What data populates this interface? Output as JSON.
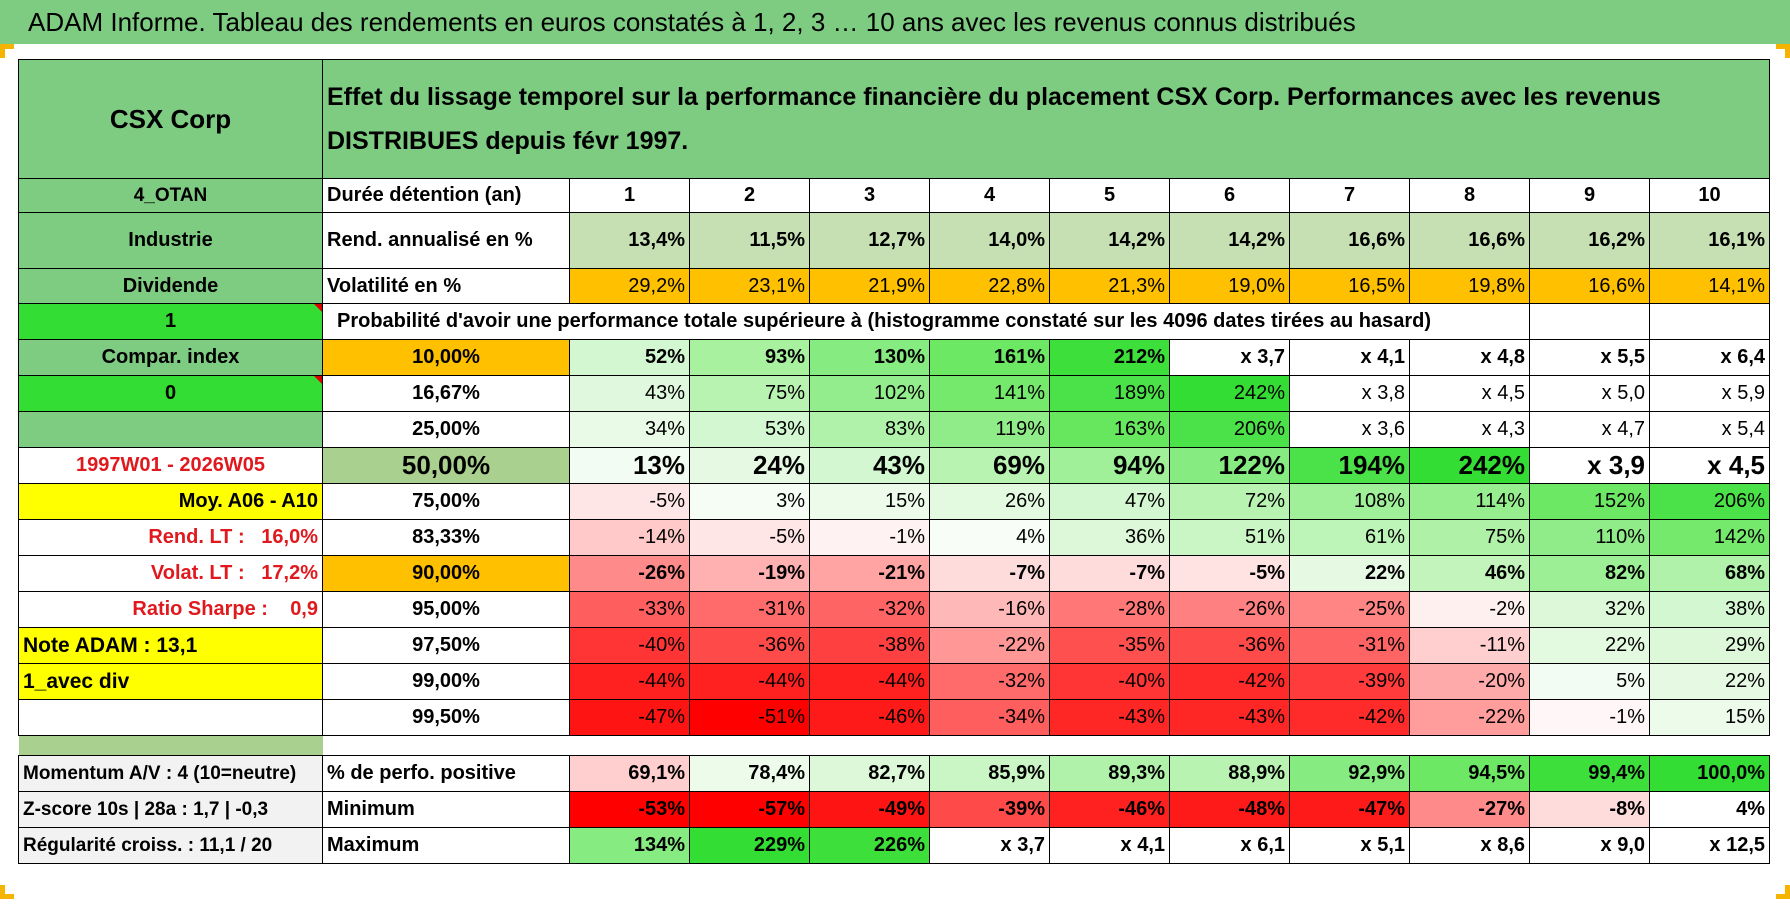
{
  "title": "ADAM Informe. Tableau des rendements en euros constatés à 1, 2, 3 … 10 ans avec les revenus connus distribués",
  "header": {
    "name": "CSX Corp",
    "description": "Effet du lissage temporel sur la performance financière du placement CSX Corp. Performances avec les revenus DISTRIBUES depuis févr 1997."
  },
  "left": {
    "code": "4_OTAN",
    "sector": "Industrie",
    "type": "Dividende",
    "flag1": "1",
    "compar": "Compar. index",
    "flag2": "0",
    "period": "1997W01 - 2026W05",
    "moy": "Moy. A06 - A10",
    "rend_lt_label": "Rend. LT :",
    "rend_lt_value": "16,0%",
    "volat_lt_label": "Volat. LT :",
    "volat_lt_value": "17,2%",
    "sharpe_label": "Ratio Sharpe :",
    "sharpe_value": "0,9",
    "note": "Note ADAM : 13,1",
    "div": "1_avec div",
    "momentum": "Momentum A/V : 4 (10=neutre)",
    "zscore": "Z-score 10s | 28a : 1,7 | -0,3",
    "regularite": "Régularité croiss. : 11,1 / 20"
  },
  "years_label": "Durée détention (an)",
  "years": [
    "1",
    "2",
    "3",
    "4",
    "5",
    "6",
    "7",
    "8",
    "9",
    "10"
  ],
  "rend_label": "Rend. annualisé en %",
  "rend": [
    "13,4%",
    "11,5%",
    "12,7%",
    "14,0%",
    "14,2%",
    "14,2%",
    "16,6%",
    "16,6%",
    "16,2%",
    "16,1%"
  ],
  "vol_label": "Volatilité en %",
  "vol": [
    "29,2%",
    "23,1%",
    "21,9%",
    "22,8%",
    "21,3%",
    "19,0%",
    "16,5%",
    "19,8%",
    "16,6%",
    "14,1%"
  ],
  "prob_label": "Probabilité d'avoir une performance totale supérieure à (histogramme constaté sur les 4096 dates tirées au hasard)",
  "prob_rows": [
    {
      "pct": "10,00%",
      "values": [
        "52%",
        "93%",
        "130%",
        "161%",
        "212%",
        "x 3,7",
        "x 4,1",
        "x 4,8",
        "x 5,5",
        "x 6,4"
      ]
    },
    {
      "pct": "16,67%",
      "values": [
        "43%",
        "75%",
        "102%",
        "141%",
        "189%",
        "242%",
        "x 3,8",
        "x 4,5",
        "x 5,0",
        "x 5,9"
      ]
    },
    {
      "pct": "25,00%",
      "values": [
        "34%",
        "53%",
        "83%",
        "119%",
        "163%",
        "206%",
        "x 3,6",
        "x 4,3",
        "x 4,7",
        "x 5,4"
      ]
    },
    {
      "pct": "50,00%",
      "values": [
        "13%",
        "24%",
        "43%",
        "69%",
        "94%",
        "122%",
        "194%",
        "242%",
        "x 3,9",
        "x 4,5"
      ]
    },
    {
      "pct": "75,00%",
      "values": [
        "-5%",
        "3%",
        "15%",
        "26%",
        "47%",
        "72%",
        "108%",
        "114%",
        "152%",
        "206%"
      ]
    },
    {
      "pct": "83,33%",
      "values": [
        "-14%",
        "-5%",
        "-1%",
        "4%",
        "36%",
        "51%",
        "61%",
        "75%",
        "110%",
        "142%"
      ]
    },
    {
      "pct": "90,00%",
      "values": [
        "-26%",
        "-19%",
        "-21%",
        "-7%",
        "-7%",
        "-5%",
        "22%",
        "46%",
        "82%",
        "68%"
      ]
    },
    {
      "pct": "95,00%",
      "values": [
        "-33%",
        "-31%",
        "-32%",
        "-16%",
        "-28%",
        "-26%",
        "-25%",
        "-2%",
        "32%",
        "38%"
      ]
    },
    {
      "pct": "97,50%",
      "values": [
        "-40%",
        "-36%",
        "-38%",
        "-22%",
        "-35%",
        "-36%",
        "-31%",
        "-11%",
        "22%",
        "29%"
      ]
    },
    {
      "pct": "99,00%",
      "values": [
        "-44%",
        "-44%",
        "-44%",
        "-32%",
        "-40%",
        "-42%",
        "-39%",
        "-20%",
        "5%",
        "22%"
      ]
    },
    {
      "pct": "99,50%",
      "values": [
        "-47%",
        "-51%",
        "-46%",
        "-34%",
        "-43%",
        "-43%",
        "-42%",
        "-22%",
        "-1%",
        "15%"
      ]
    }
  ],
  "positive_label": "% de perfo. positive",
  "positive": [
    "69,1%",
    "78,4%",
    "82,7%",
    "85,9%",
    "89,3%",
    "88,9%",
    "92,9%",
    "94,5%",
    "99,4%",
    "100,0%"
  ],
  "min_label": "Minimum",
  "min": [
    "-53%",
    "-57%",
    "-49%",
    "-39%",
    "-46%",
    "-48%",
    "-47%",
    "-27%",
    "-8%",
    "4%"
  ],
  "max_label": "Maximum",
  "max": [
    "134%",
    "229%",
    "226%",
    "x 3,7",
    "x 4,1",
    "x 6,1",
    "x 5,1",
    "x 8,6",
    "x 9,0",
    "x 12,5"
  ],
  "colors": {
    "green_header": "#7ecb82",
    "bright_green": "#33dd33",
    "yellow": "#ffff00",
    "orange": "#ffc000",
    "olive": "#a9d08e",
    "red_text": "#e0191e",
    "bracket": "#f4b400"
  },
  "cell_colors": {
    "rend": [
      "#c6e0b4",
      "#c6e0b4",
      "#c6e0b4",
      "#c6e0b4",
      "#c6e0b4",
      "#c6e0b4",
      "#c6e0b4",
      "#c6e0b4",
      "#c6e0b4",
      "#c6e0b4"
    ],
    "vol": [
      "#ffc000",
      "#ffc000",
      "#ffc000",
      "#ffc000",
      "#ffc000",
      "#ffc000",
      "#ffc000",
      "#ffc000",
      "#ffc000",
      "#ffc000"
    ],
    "prob": [
      [
        "#d3f7d0",
        "#a7f19f",
        "#86eb80",
        "#6de864",
        "#3ddf3a",
        "#ffffff",
        "#ffffff",
        "#ffffff",
        "#ffffff",
        "#ffffff"
      ],
      [
        "#e0f8dd",
        "#b8f3b1",
        "#93ed8c",
        "#74e96b",
        "#4be148",
        "#33dd33",
        "#ffffff",
        "#ffffff",
        "#ffffff",
        "#ffffff"
      ],
      [
        "#e9faE6",
        "#d3f7d0",
        "#b0f2a9",
        "#8fec88",
        "#66e75e",
        "#4be148",
        "#ffffff",
        "#ffffff",
        "#ffffff",
        "#ffffff"
      ],
      [
        "#f3fcf2",
        "#e6f9e3",
        "#d3f7d0",
        "#b8f3b1",
        "#a0ef99",
        "#86eb80",
        "#4be148",
        "#33dd33",
        "#ffffff",
        "#ffffff"
      ],
      [
        "#ffe6e6",
        "#f5fdf4",
        "#edfbeb",
        "#e3f9e0",
        "#d3f7d0",
        "#b8f3b1",
        "#a0ef99",
        "#96ee8f",
        "#6de864",
        "#4be148"
      ],
      [
        "#ffc9c9",
        "#ffe6e6",
        "#fff2f2",
        "#f8fdf7",
        "#dcf8d9",
        "#caf5c5",
        "#bdf4b7",
        "#aef1a7",
        "#8fec88",
        "#74e96b"
      ],
      [
        "#ff8a8a",
        "#ffb0b0",
        "#ffa3a3",
        "#ffdcdc",
        "#ffdcdc",
        "#ffe3e3",
        "#e6f9e3",
        "#c2f4bc",
        "#9def96",
        "#b0f2a9"
      ],
      [
        "#ff5e5e",
        "#ff6b6b",
        "#ff6464",
        "#ffb8b8",
        "#ff7777",
        "#ff8080",
        "#ff8585",
        "#fff0f0",
        "#dcf8d9",
        "#d3f7d0"
      ],
      [
        "#ff3535",
        "#ff4a4a",
        "#ff4040",
        "#ff9797",
        "#ff5050",
        "#ff4a4a",
        "#ff6464",
        "#ffcfcf",
        "#e3f9e0",
        "#dcf8d9"
      ],
      [
        "#ff2020",
        "#ff2020",
        "#ff2020",
        "#ff6b6b",
        "#ff3535",
        "#ff2b2b",
        "#ff3b3b",
        "#ffaaaa",
        "#f3fcf2",
        "#e6f9e3"
      ],
      [
        "#ff1414",
        "#ff0000",
        "#ff1a1a",
        "#ff5e5e",
        "#ff2626",
        "#ff2626",
        "#ff2b2b",
        "#ff9c9c",
        "#fff7f7",
        "#edfbeb"
      ]
    ],
    "positive": [
      "#ffcece",
      "#ecfbea",
      "#dcf8d9",
      "#caf5c5",
      "#b0f2a9",
      "#b8f3b1",
      "#86eb80",
      "#6de864",
      "#3ddf3a",
      "#33dd33"
    ],
    "min": [
      "#ff0000",
      "#ff0000",
      "#ff1414",
      "#ff4a4a",
      "#ff2020",
      "#ff1a1a",
      "#ff1a1a",
      "#ff8a8a",
      "#ffdcdc",
      "#ffffff"
    ],
    "max": [
      "#86eb80",
      "#33dd33",
      "#3ddf3a",
      "#ffffff",
      "#ffffff",
      "#ffffff",
      "#ffffff",
      "#ffffff",
      "#ffffff",
      "#ffffff"
    ]
  }
}
